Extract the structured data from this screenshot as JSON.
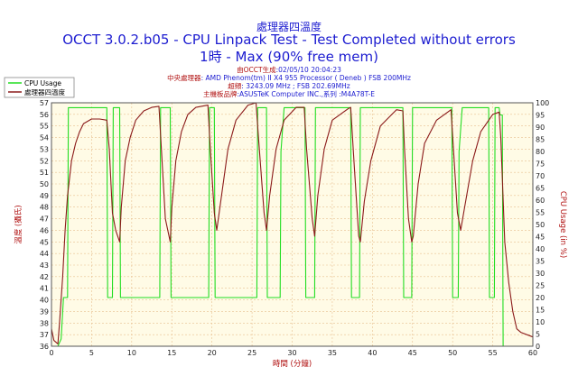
{
  "header": {
    "title_line1": "處理器四溫度",
    "title_line2": "OCCT 3.0.2.b05 - CPU Linpack Test - Test Completed without errors",
    "title_line3": "1時 - Max (90% free mem)"
  },
  "info": [
    {
      "label": "由OCCT生成",
      "value": ":02/05/10 20:04:23"
    },
    {
      "label": "中央處理器",
      "value": ": AMD Phenom(tm) II X4 955 Processor ( Deneb ) FSB 200MHz"
    },
    {
      "label": "超頻",
      "value": ": 3243.09 MHz ; FSB 202.69MHz"
    },
    {
      "label": "主機板品牌",
      "value": ":ASUSTeK Computer INC.,系列 :M4A78T-E"
    }
  ],
  "colors": {
    "temperature": "#8b1a1a",
    "cpu_usage": "#22dd22",
    "plot_bg": "#fffbe6",
    "grid": "#e8c090"
  },
  "chart_data": {
    "type": "line",
    "x_axis": {
      "label": "時間 (分鐘)",
      "min": 0,
      "max": 60,
      "ticks": [
        0,
        5,
        10,
        15,
        20,
        25,
        30,
        35,
        40,
        45,
        50,
        55,
        60
      ]
    },
    "y_left": {
      "label": "溫度 (攝氏)",
      "min": 36,
      "max": 57,
      "ticks": [
        36,
        37,
        38,
        39,
        40,
        41,
        42,
        43,
        44,
        45,
        46,
        47,
        48,
        49,
        50,
        51,
        52,
        53,
        54,
        55,
        56,
        57
      ]
    },
    "y_right": {
      "label": "CPU Usage (in %)",
      "min": 0,
      "max": 100,
      "ticks": [
        0,
        5,
        10,
        15,
        20,
        25,
        30,
        35,
        40,
        45,
        50,
        55,
        60,
        65,
        70,
        75,
        80,
        85,
        90,
        95,
        100
      ]
    },
    "legend": {
      "placement": "top-left",
      "entries": [
        "CPU Usage",
        "處理器四溫度"
      ]
    },
    "series": [
      {
        "name": "CPU Usage",
        "axis": "right",
        "x": [
          0,
          0.8,
          1.2,
          1.5,
          2.0,
          2.1,
          6.9,
          7.0,
          7.6,
          7.7,
          8.5,
          8.6,
          13.5,
          13.6,
          14.8,
          14.9,
          19.6,
          19.7,
          20.3,
          20.4,
          25.6,
          25.7,
          26.8,
          26.9,
          28.5,
          28.6,
          29.0,
          29.3,
          31.6,
          31.7,
          32.8,
          32.9,
          37.3,
          37.4,
          38.4,
          38.5,
          43.8,
          43.9,
          44.9,
          45.0,
          49.9,
          50.0,
          50.7,
          50.8,
          51.2,
          51.3,
          54.5,
          54.6,
          55.2,
          55.3,
          55.8,
          55.9,
          56.2,
          56.3,
          60
        ],
        "y": [
          0,
          0,
          3,
          20,
          20,
          98,
          98,
          20,
          20,
          98,
          98,
          20,
          20,
          98,
          98,
          20,
          20,
          98,
          98,
          20,
          20,
          98,
          98,
          20,
          20,
          80,
          98,
          98,
          98,
          20,
          20,
          98,
          98,
          20,
          20,
          98,
          98,
          20,
          20,
          98,
          98,
          20,
          20,
          80,
          98,
          98,
          98,
          20,
          20,
          98,
          98,
          95,
          95,
          0,
          0
        ]
      },
      {
        "name": "處理器四溫度",
        "axis": "left",
        "x": [
          0,
          0.3,
          0.8,
          1.0,
          1.4,
          1.7,
          2.0,
          2.5,
          3.0,
          3.5,
          4.0,
          5.0,
          6.0,
          6.9,
          7.2,
          7.6,
          8.0,
          8.5,
          8.7,
          9.2,
          9.8,
          10.5,
          11.5,
          12.5,
          13.4,
          13.7,
          14.2,
          14.8,
          15.0,
          15.5,
          16.2,
          17.0,
          18.0,
          19.5,
          19.8,
          20.3,
          20.6,
          21.2,
          22.0,
          23.0,
          24.5,
          25.5,
          25.8,
          26.5,
          26.8,
          27.2,
          28.0,
          29.0,
          30.5,
          31.5,
          31.8,
          32.5,
          32.8,
          33.2,
          34.0,
          35.0,
          37.0,
          37.3,
          37.7,
          38.3,
          38.5,
          39.0,
          39.8,
          41.0,
          43.0,
          43.8,
          44.0,
          44.5,
          44.9,
          45.1,
          45.7,
          46.5,
          48.0,
          49.8,
          50.1,
          50.6,
          51.0,
          51.5,
          52.5,
          53.5,
          55.0,
          55.8,
          56.0,
          56.5,
          57.0,
          57.5,
          58.0,
          58.5,
          60
        ],
        "y": [
          37.5,
          36.5,
          36.2,
          38,
          42,
          46,
          49,
          52,
          53.5,
          54.5,
          55.2,
          55.6,
          55.6,
          55.5,
          53,
          47.5,
          46,
          45,
          48,
          52,
          54,
          55.5,
          56.3,
          56.6,
          56.7,
          53,
          47,
          45,
          48,
          52,
          54.5,
          56,
          56.6,
          56.8,
          53,
          47.5,
          46,
          49,
          53,
          55.5,
          56.8,
          57,
          54,
          47.5,
          46,
          49,
          53,
          55.5,
          56.6,
          56.6,
          53,
          47,
          45.5,
          49,
          53,
          55.5,
          56.5,
          56.6,
          52,
          45.5,
          45,
          48.5,
          52,
          55,
          56.4,
          56.3,
          53,
          47,
          45,
          45.5,
          50,
          53.5,
          55.5,
          56.4,
          53,
          47.5,
          46,
          48,
          52,
          54.5,
          56,
          56.2,
          54,
          45,
          41.5,
          39,
          37.5,
          37.2,
          36.8
        ]
      }
    ]
  }
}
